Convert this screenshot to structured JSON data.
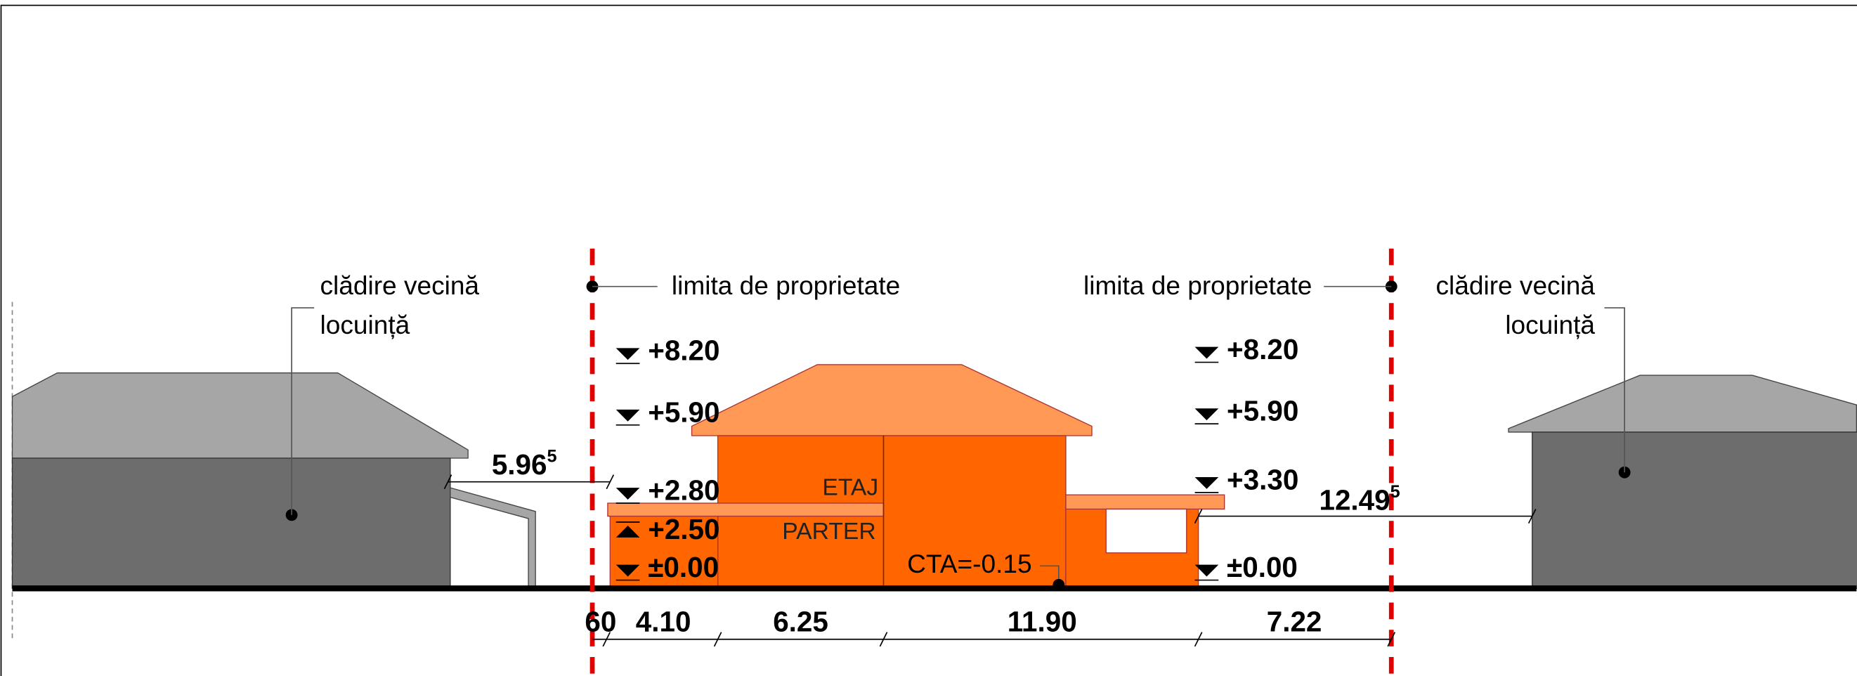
{
  "left_neighbor": {
    "line1": "clădire vecină",
    "line2": "locuință"
  },
  "right_neighbor": {
    "line1": "clădire vecină",
    "line2": "locuință"
  },
  "property_limit_left": "limita de proprietate",
  "property_limit_right": "limita de proprietate",
  "levels_left": [
    "+8.20",
    "+5.90",
    "+2.80",
    "+2.50",
    "±0.00"
  ],
  "levels_right": [
    "+8.20",
    "+5.90",
    "+3.30",
    "±0.00"
  ],
  "rooms": {
    "upper": "ETAJ",
    "lower": "PARTER"
  },
  "cta": "CTA=-0.15",
  "distance_left": {
    "main": "5.96",
    "sup": "5"
  },
  "distance_right": {
    "main": "12.49",
    "sup": "5"
  },
  "bottom_dimensions": [
    "60",
    "4.10",
    "6.25",
    "11.90",
    "7.22"
  ]
}
